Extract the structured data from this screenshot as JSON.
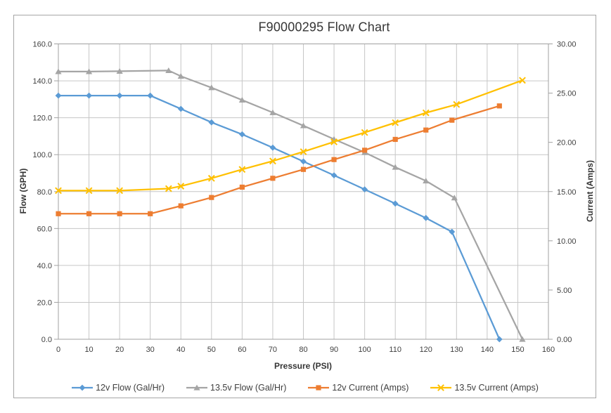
{
  "window": {
    "background": "#ffffff",
    "frame_border_color": "#a6a6a6"
  },
  "chart_data": {
    "type": "line",
    "title": "F90000295 Flow Chart",
    "xlabel": "Pressure (PSI)",
    "ylabel_left": "Flow (GPH)",
    "ylabel_right": "Current (Amps)",
    "xlim": [
      0,
      160
    ],
    "ylim_left": [
      0,
      160
    ],
    "ylim_right": [
      0,
      30
    ],
    "x_tick_values": [
      0,
      10,
      20,
      30,
      40,
      50,
      60,
      70,
      80,
      90,
      100,
      110,
      120,
      130,
      140,
      150,
      160
    ],
    "x_tick_labels": [
      "0",
      "10",
      "20",
      "30",
      "40",
      "50",
      "60",
      "70",
      "80",
      "90",
      "100",
      "110",
      "120",
      "130",
      "140",
      "150",
      "160"
    ],
    "y_left_tick_values": [
      0,
      20,
      40,
      60,
      80,
      100,
      120,
      140,
      160
    ],
    "y_left_tick_labels": [
      "0.0",
      "20.0",
      "40.0",
      "60.0",
      "80.0",
      "100.0",
      "120.0",
      "140.0",
      "160.0"
    ],
    "y_right_tick_values": [
      0,
      5,
      10,
      15,
      20,
      25,
      30
    ],
    "y_right_tick_labels": [
      "0.00",
      "5.00",
      "10.00",
      "15.00",
      "20.00",
      "25.00",
      "30.00"
    ],
    "grid": {
      "vertical_every": 10,
      "horizontal_every": 20,
      "gridline_color": "#c6c6c6",
      "axis_color": "#a0a0a0",
      "tick_color": "#a0a0a0",
      "tick_label_color": "#3f3f3f"
    },
    "legend_position": "bottom",
    "series": [
      {
        "name": "12v Flow (Gal/Hr)",
        "axis": "left",
        "color": "#5B9BD5",
        "marker": "diamond",
        "x": [
          0,
          10,
          20,
          30,
          40,
          50,
          60,
          70,
          80,
          90,
          100,
          110,
          120,
          128.5,
          144
        ],
        "y": [
          132,
          132,
          132,
          132,
          124.8,
          117.5,
          111,
          103.8,
          96.3,
          88.8,
          81.2,
          73.5,
          65.7,
          58.2,
          0
        ]
      },
      {
        "name": "13.5v Flow (Gal/Hr)",
        "axis": "left",
        "color": "#A5A5A5",
        "marker": "triangle",
        "x": [
          0,
          10,
          20,
          36,
          40,
          50,
          60,
          70,
          80,
          90,
          100,
          110,
          120,
          129.3,
          151.5
        ],
        "y": [
          145,
          145,
          145.2,
          145.6,
          142.5,
          136.3,
          129.6,
          122.8,
          115.7,
          108.4,
          101.2,
          93.2,
          85.8,
          76.6,
          0
        ]
      },
      {
        "name": "12v Current (Amps)",
        "axis": "right",
        "color": "#ED7D31",
        "marker": "square",
        "x": [
          0,
          10,
          20,
          30,
          40,
          50,
          60,
          70,
          80,
          90,
          100,
          110,
          120,
          128.5,
          144
        ],
        "y": [
          12.75,
          12.75,
          12.75,
          12.75,
          13.55,
          14.4,
          15.45,
          16.35,
          17.25,
          18.25,
          19.2,
          20.3,
          21.25,
          22.25,
          23.7
        ]
      },
      {
        "name": "13.5v Current (Amps)",
        "axis": "right",
        "color": "#FFC000",
        "marker": "x",
        "x": [
          0,
          10,
          20,
          36,
          40,
          50,
          60,
          70,
          80,
          90,
          100,
          110,
          120,
          130,
          151.5
        ],
        "y": [
          15.1,
          15.1,
          15.1,
          15.3,
          15.55,
          16.35,
          17.25,
          18.1,
          19.05,
          20.05,
          21.0,
          22.0,
          23.0,
          23.85,
          26.3
        ]
      }
    ]
  }
}
